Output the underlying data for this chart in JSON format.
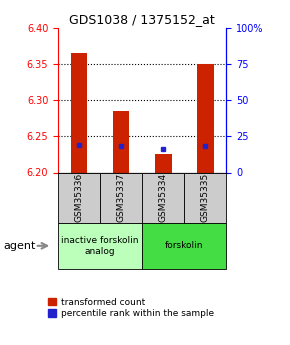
{
  "title": "GDS1038 / 1375152_at",
  "samples": [
    "GSM35336",
    "GSM35337",
    "GSM35334",
    "GSM35335"
  ],
  "bar_bottoms": [
    6.2,
    6.2,
    6.2,
    6.2
  ],
  "bar_tops": [
    6.365,
    6.285,
    6.225,
    6.35
  ],
  "percentile_vals": [
    6.238,
    6.237,
    6.232,
    6.237
  ],
  "ylim_left": [
    6.2,
    6.4
  ],
  "yticks_left": [
    6.2,
    6.25,
    6.3,
    6.35,
    6.4
  ],
  "yticks_right": [
    0,
    25,
    50,
    75,
    100
  ],
  "grid_yticks": [
    6.25,
    6.3,
    6.35
  ],
  "bar_color": "#cc2200",
  "dot_color": "#2222cc",
  "sample_box_color": "#cccccc",
  "group1_color": "#bbffbb",
  "group2_color": "#44dd44",
  "legend_red_label": "transformed count",
  "legend_blue_label": "percentile rank within the sample",
  "agent_label": "agent",
  "group1_label": "inactive forskolin\nanalog",
  "group2_label": "forskolin",
  "bar_width": 0.4,
  "title_fontsize": 9,
  "tick_fontsize": 7,
  "sample_fontsize": 6.5,
  "group_fontsize": 6.5,
  "legend_fontsize": 6.5
}
